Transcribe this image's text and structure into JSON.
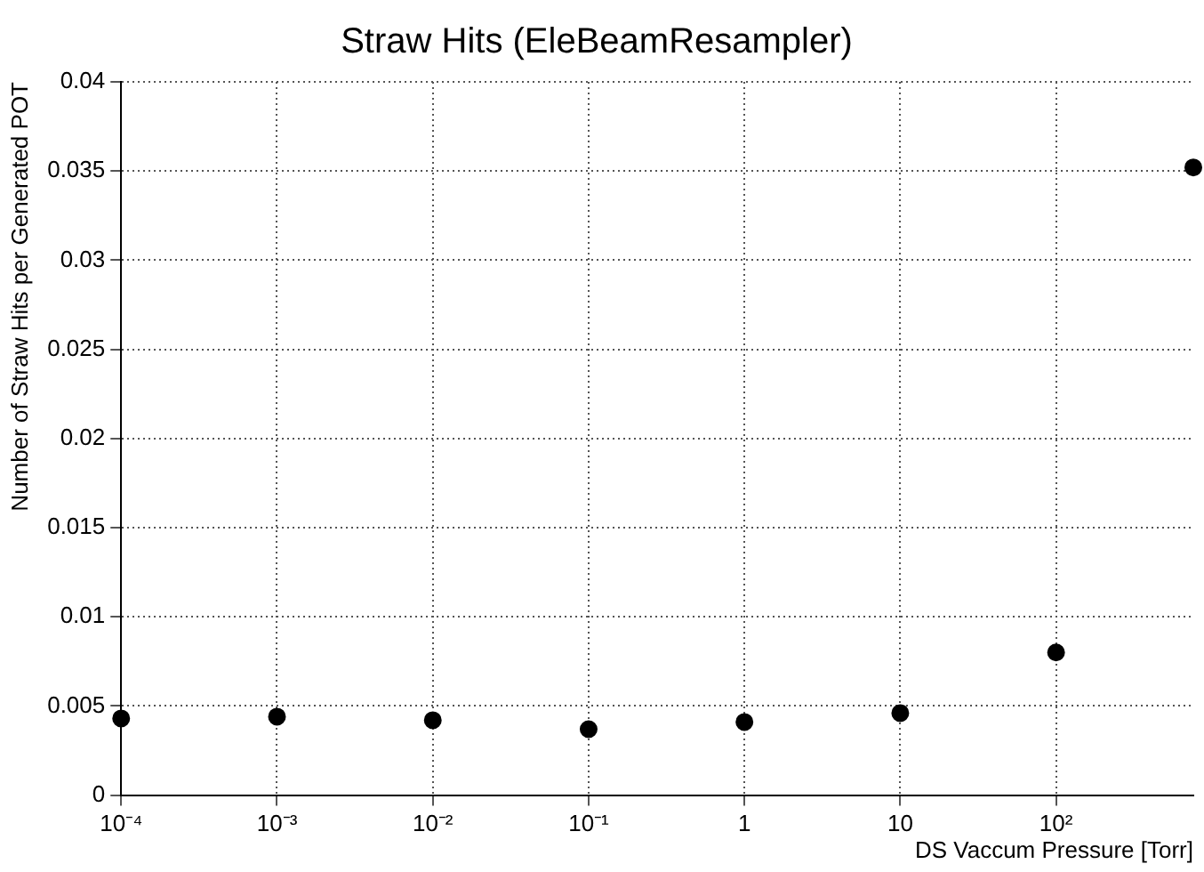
{
  "chart_data": {
    "type": "scatter",
    "title": "Straw Hits (EleBeamResampler)",
    "xlabel": "DS Vaccum Pressure [Torr]",
    "ylabel": "Number of Straw Hits per Generated POT",
    "log": "x",
    "x": [
      0.0001,
      0.001,
      0.01,
      0.1,
      1,
      10,
      100,
      760
    ],
    "series": [
      {
        "color": "#000000",
        "values": [
          0.0043,
          0.0044,
          0.0042,
          0.0037,
          0.0041,
          0.0046,
          0.008,
          0.0352
        ]
      }
    ],
    "xlim": [
      0.0001,
      760
    ],
    "xticks": [
      {
        "value": 0.0001,
        "label": "10⁻⁴"
      },
      {
        "value": 0.001,
        "label": "10⁻³"
      },
      {
        "value": 0.01,
        "label": "10⁻²"
      },
      {
        "value": 0.1,
        "label": "10⁻¹"
      },
      1,
      10,
      {
        "value": 100,
        "label": "10²"
      }
    ],
    "ylim": [
      0,
      0.04
    ],
    "yticks": [
      0,
      0.005,
      0.01,
      0.015,
      0.02,
      0.025,
      0.03,
      0.035,
      0.04
    ],
    "grid": true,
    "legend": false,
    "marker": "circle"
  }
}
